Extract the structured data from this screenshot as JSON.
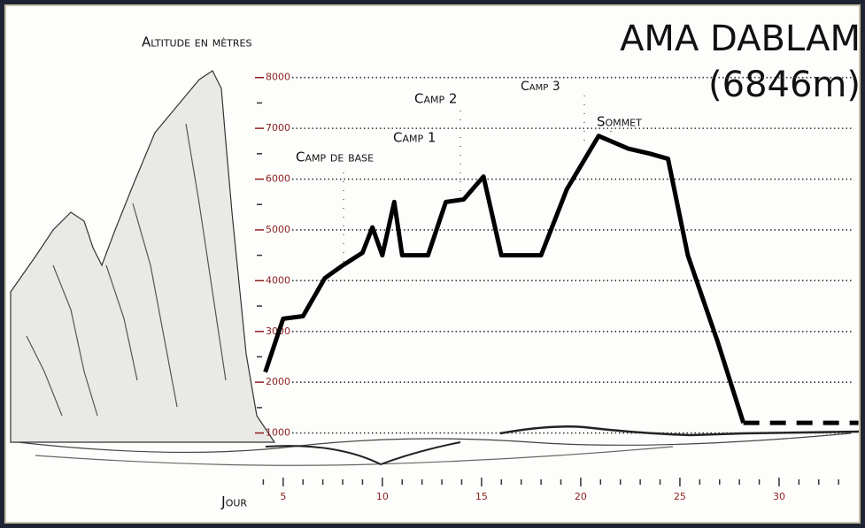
{
  "chart_data": {
    "type": "line",
    "title": "AMA DABLAM",
    "subtitle": "(6846m)",
    "y_label": "Altitude en mètres",
    "x_label": "Jour",
    "annotations": [
      "Camp de base",
      "Camp 1",
      "Camp 2",
      "Camp 3",
      "Sommet"
    ],
    "x": [
      4.1,
      5,
      6,
      7.1,
      8,
      9,
      9.5,
      10,
      10.6,
      11,
      12.3,
      13.2,
      14.1,
      15.1,
      16,
      18,
      19.3,
      20.9,
      21.5,
      22.4,
      23.5,
      24.4,
      25.4,
      26.9,
      28.2,
      34
    ],
    "series": [
      {
        "color": "#000000",
        "dashed": false,
        "values": [
          2200,
          3250,
          3300,
          4050,
          4300,
          4550,
          5050,
          4500,
          5550,
          4500,
          4500,
          5550,
          5600,
          6050,
          4500,
          4500,
          5800,
          6850,
          6750,
          6600,
          6500,
          6400,
          4500,
          2800,
          1200,
          null
        ]
      },
      {
        "color": "#000000",
        "dashed": true,
        "values": [
          null,
          null,
          null,
          null,
          null,
          null,
          null,
          null,
          null,
          null,
          null,
          null,
          null,
          null,
          null,
          null,
          null,
          null,
          null,
          null,
          null,
          null,
          null,
          null,
          1200,
          1200
        ]
      }
    ],
    "xlim": [
      3,
      34
    ],
    "ylim": [
      0,
      8500
    ],
    "xticks": [
      5,
      10,
      15,
      20,
      25,
      30
    ],
    "xminorticks": [
      4,
      6,
      7,
      8,
      9,
      11,
      12,
      13,
      14,
      16,
      17,
      18,
      19,
      21,
      22,
      23,
      24,
      26,
      27,
      28,
      29,
      31,
      32,
      33
    ],
    "yticks": [
      1000,
      2000,
      3000,
      4000,
      5000,
      6000,
      7000,
      8000
    ],
    "yminorticks": [
      1500,
      2500,
      3500,
      4500,
      5500,
      6500,
      7500
    ],
    "grid": true
  }
}
